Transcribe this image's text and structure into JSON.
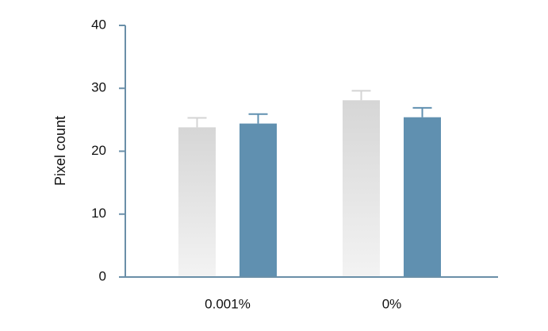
{
  "chart_data": {
    "type": "bar",
    "title": "",
    "xlabel": "",
    "ylabel": "Pixel count",
    "ylim": [
      0,
      40
    ],
    "yticks": [
      "0",
      "10",
      "20",
      "30",
      "40"
    ],
    "categories": [
      "0.001%",
      "0%"
    ],
    "series": [
      {
        "values": [
          23.8,
          28.1
        ],
        "errors": [
          1.5,
          1.5
        ],
        "color": "#d9d9d9"
      },
      {
        "values": [
          24.4,
          25.4
        ],
        "errors": [
          1.5,
          1.5
        ],
        "color": "#6090b0"
      }
    ],
    "grid": false,
    "legend": "none",
    "colors": {
      "axis": "#6a8fa8"
    }
  }
}
